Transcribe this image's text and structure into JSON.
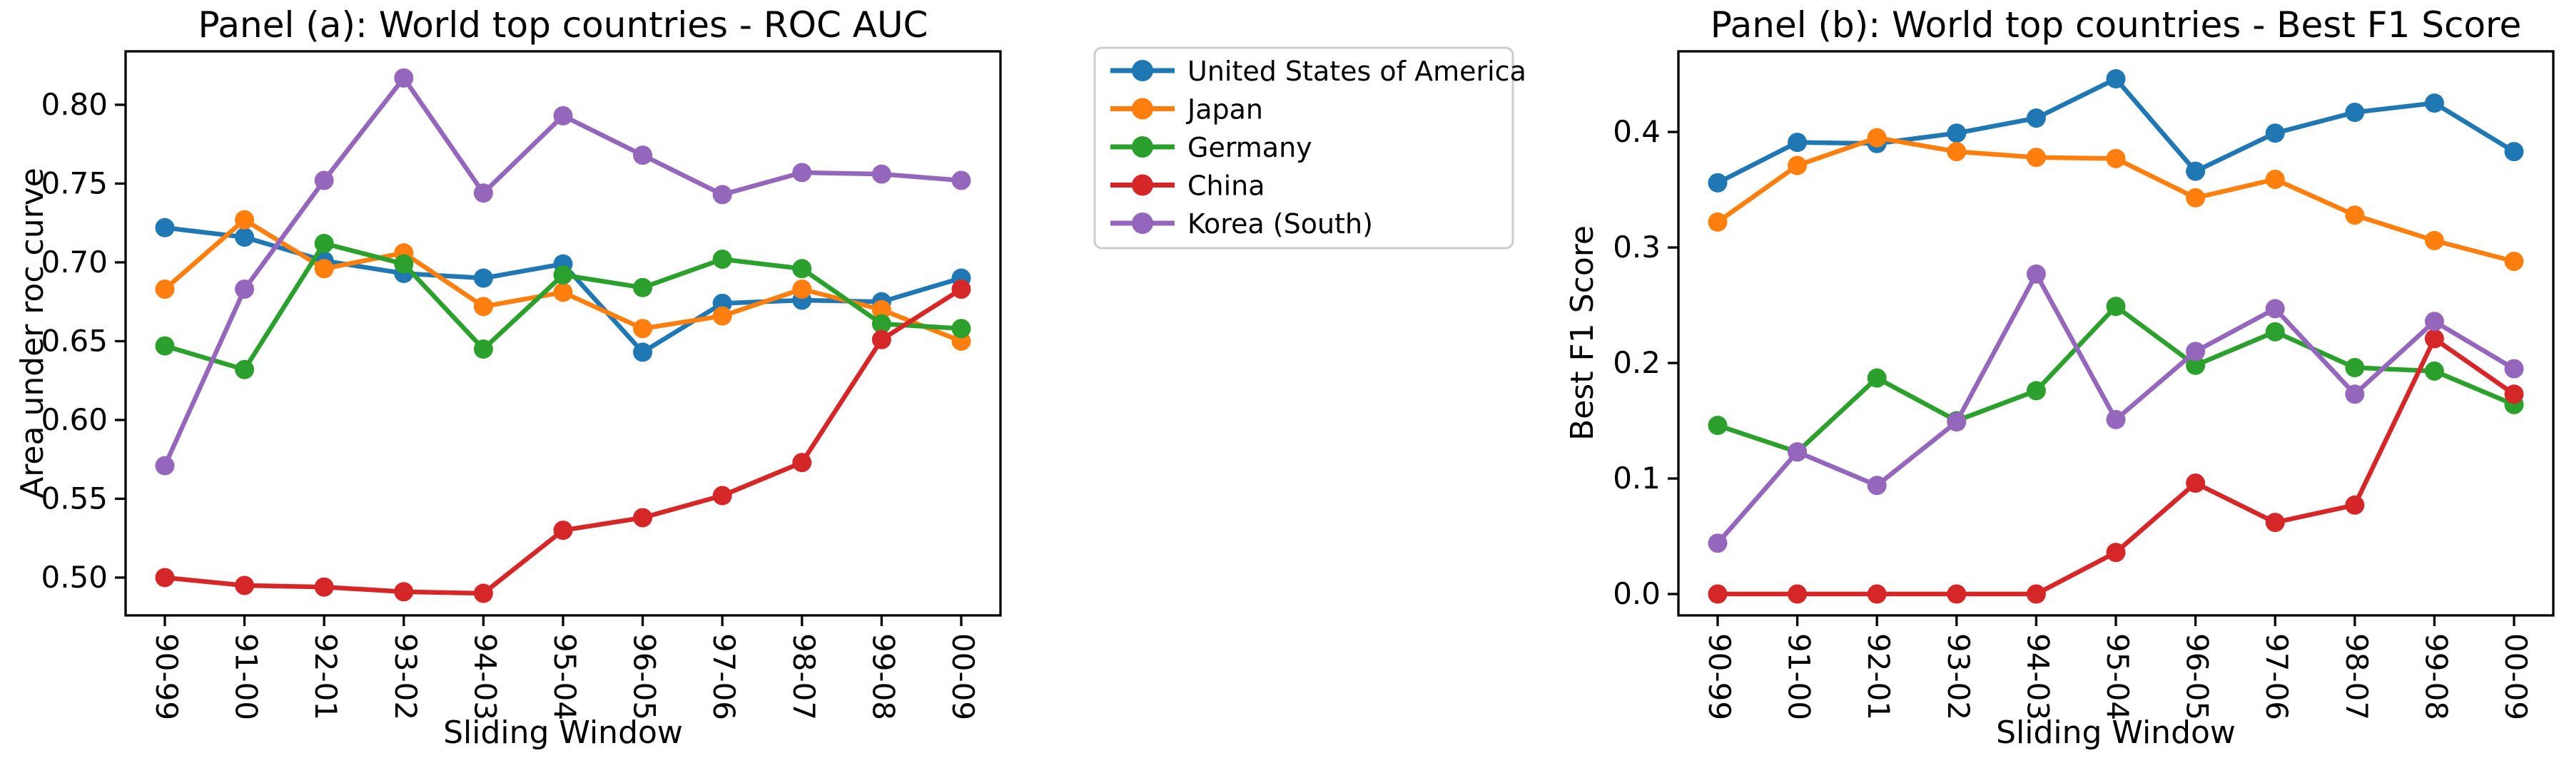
{
  "legend": {
    "position": "upper center, between panels",
    "entries": [
      {
        "label": "United States of America",
        "color": "#1f77b4"
      },
      {
        "label": "Japan",
        "color": "#ff7f0e"
      },
      {
        "label": "Germany",
        "color": "#2ca02c"
      },
      {
        "label": "China",
        "color": "#d62728"
      },
      {
        "label": "Korea (South)",
        "color": "#9467bd"
      }
    ]
  },
  "chart_data": [
    {
      "type": "line",
      "panel": "a",
      "title": "Panel (a): World top countries - ROC AUC",
      "xlabel": "Sliding Window",
      "ylabel": "Area under roc curve",
      "categories": [
        "90-99",
        "91-00",
        "92-01",
        "93-02",
        "94-03",
        "95-04",
        "96-05",
        "97-06",
        "98-07",
        "99-08",
        "00-09"
      ],
      "ylim": [
        0.476,
        0.8339
      ],
      "yticks": [
        "0.50",
        "0.55",
        "0.60",
        "0.65",
        "0.70",
        "0.75",
        "0.80"
      ],
      "grid": false,
      "series": [
        {
          "name": "United States of America",
          "color": "#1f77b4",
          "values": [
            0.722,
            0.716,
            0.701,
            0.693,
            0.69,
            0.699,
            0.643,
            0.674,
            0.676,
            0.675,
            0.69
          ]
        },
        {
          "name": "Japan",
          "color": "#ff7f0e",
          "values": [
            0.683,
            0.727,
            0.696,
            0.706,
            0.672,
            0.681,
            0.658,
            0.666,
            0.683,
            0.67,
            0.65
          ]
        },
        {
          "name": "Germany",
          "color": "#2ca02c",
          "values": [
            0.647,
            0.632,
            0.712,
            0.699,
            0.645,
            0.692,
            0.684,
            0.702,
            0.696,
            0.661,
            0.658
          ]
        },
        {
          "name": "China",
          "color": "#d62728",
          "values": [
            0.5,
            0.495,
            0.494,
            0.491,
            0.49,
            0.53,
            0.538,
            0.552,
            0.573,
            0.651,
            0.683
          ]
        },
        {
          "name": "Korea (South)",
          "color": "#9467bd",
          "values": [
            0.571,
            0.683,
            0.752,
            0.817,
            0.744,
            0.793,
            0.768,
            0.743,
            0.757,
            0.756,
            0.752
          ]
        }
      ]
    },
    {
      "type": "line",
      "panel": "b",
      "title": "Panel (b): World top countries - Best F1 Score",
      "xlabel": "Sliding Window",
      "ylabel": "Best F1 Score",
      "categories": [
        "90-99",
        "91-00",
        "92-01",
        "93-02",
        "94-03",
        "95-04",
        "96-05",
        "97-06",
        "98-07",
        "99-08",
        "00-09"
      ],
      "ylim": [
        -0.0185,
        0.4698
      ],
      "yticks": [
        "0.0",
        "0.1",
        "0.2",
        "0.3",
        "0.4"
      ],
      "grid": false,
      "series": [
        {
          "name": "United States of America",
          "color": "#1f77b4",
          "values": [
            0.356,
            0.391,
            0.39,
            0.399,
            0.412,
            0.446,
            0.366,
            0.399,
            0.417,
            0.425,
            0.383
          ]
        },
        {
          "name": "Japan",
          "color": "#ff7f0e",
          "values": [
            0.322,
            0.371,
            0.395,
            0.383,
            0.378,
            0.377,
            0.343,
            0.359,
            0.328,
            0.306,
            0.288
          ]
        },
        {
          "name": "Germany",
          "color": "#2ca02c",
          "values": [
            0.146,
            0.123,
            0.187,
            0.15,
            0.176,
            0.249,
            0.198,
            0.227,
            0.196,
            0.193,
            0.164
          ]
        },
        {
          "name": "China",
          "color": "#d62728",
          "values": [
            0.0,
            0.0,
            0.0,
            0.0,
            0.0,
            0.036,
            0.096,
            0.062,
            0.077,
            0.221,
            0.173
          ]
        },
        {
          "name": "Korea (South)",
          "color": "#9467bd",
          "values": [
            0.044,
            0.123,
            0.094,
            0.149,
            0.277,
            0.151,
            0.21,
            0.247,
            0.173,
            0.236,
            0.195
          ]
        }
      ]
    }
  ]
}
